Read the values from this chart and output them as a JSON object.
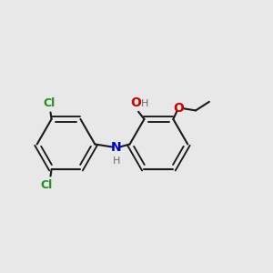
{
  "bg": "#e8e8e8",
  "bond_color": "#1a1a1a",
  "cl_color": "#228B22",
  "n_color": "#0000CD",
  "o_color": "#CC0000",
  "h_color": "#6b6b6b",
  "lw": 1.5,
  "fs": 9,
  "figsize": [
    3.0,
    3.0
  ],
  "dpi": 100,
  "xlim": [
    0.15,
    2.95
  ],
  "ylim": [
    0.7,
    2.3
  ]
}
